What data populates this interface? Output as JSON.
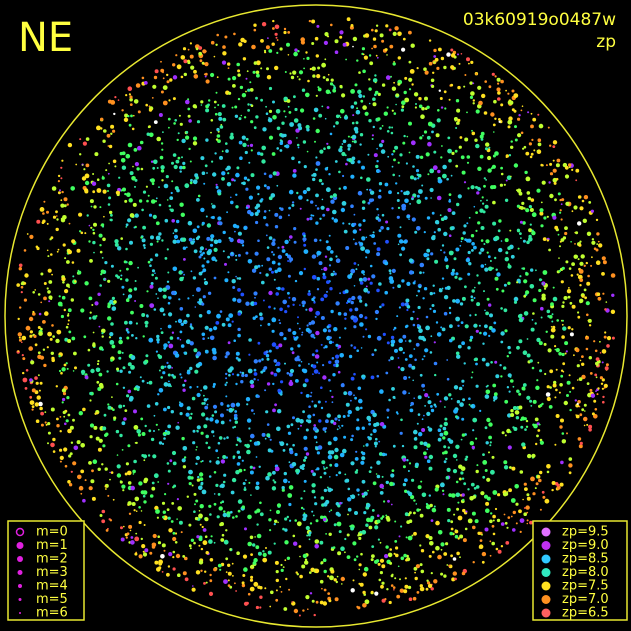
{
  "direction_label": "NE",
  "image_id": "03k60919o0487w",
  "image_mode": "zp",
  "magnitude_legend": [
    "m=0",
    "m=1",
    "m=2",
    "m=3",
    "m=4",
    "m=5",
    "m=6"
  ],
  "zp_legend": [
    {
      "label": "zp=9.5",
      "color": "#e070ff"
    },
    {
      "label": "zp=9.0",
      "color": "#c030f0"
    },
    {
      "label": "zp=8.5",
      "color": "#30c8ff"
    },
    {
      "label": "zp=8.0",
      "color": "#30e8c0"
    },
    {
      "label": "zp=7.5",
      "color": "#ffe020"
    },
    {
      "label": "zp=7.0",
      "color": "#ff9020"
    },
    {
      "label": "zp=6.5",
      "color": "#ff6060"
    }
  ]
}
